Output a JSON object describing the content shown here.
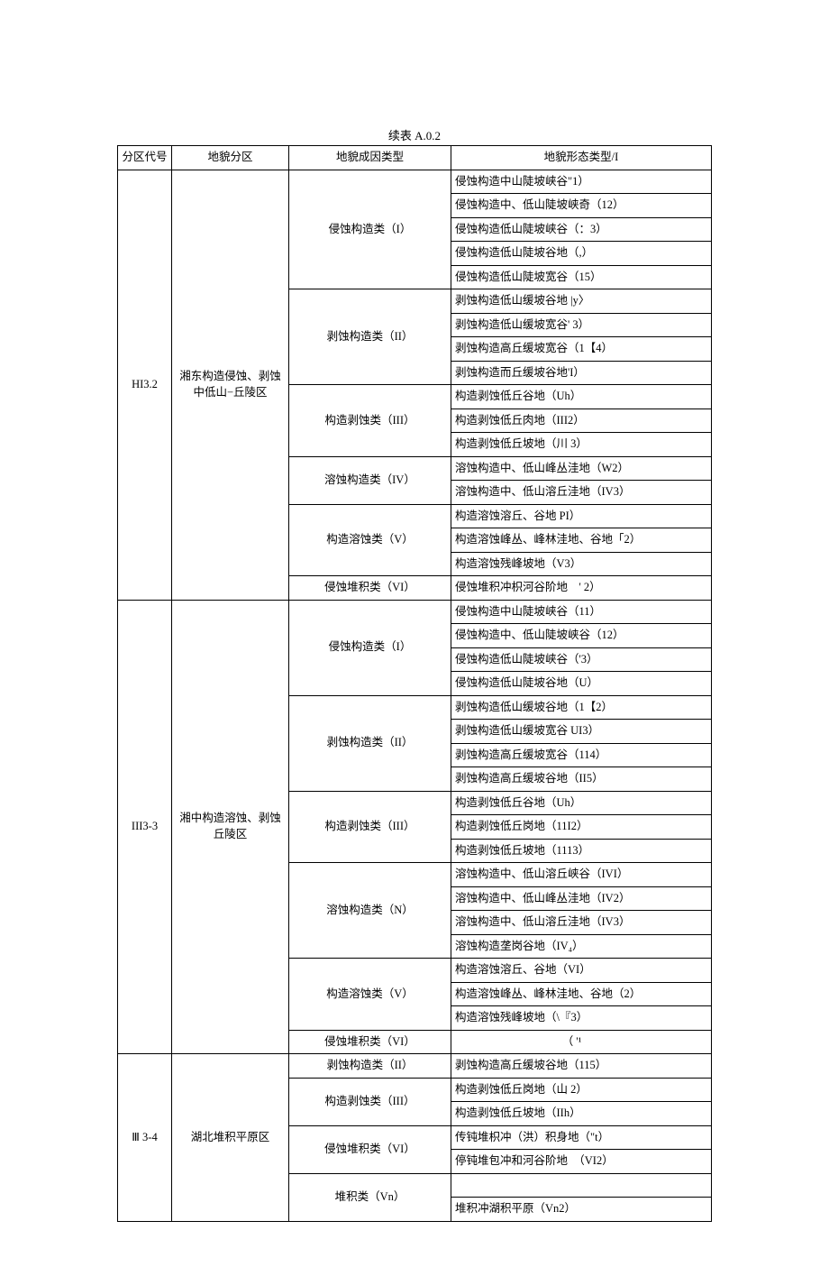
{
  "caption": "续表 A.0.2",
  "headers": {
    "code": "分区代号",
    "zone": "地貌分区",
    "genetic": "地貌成因类型",
    "morph": "地貌形态类型/I"
  },
  "sections": [
    {
      "code": "HI3.2",
      "zone": "湘东构造侵蚀、剥蚀中低山−丘陵区",
      "groups": [
        {
          "genetic": "侵蚀构造类（I）",
          "rows": [
            "侵蚀构造中山陡坡峡谷\"1）",
            "侵蚀构造中、低山陡坡峡奇（12）",
            "侵蚀构造低山陡坡峡谷（：3）",
            "侵蚀构造低山陡坡谷地（,）",
            "侵蚀构造低山陡坡宽谷（15）"
          ]
        },
        {
          "genetic": "剥蚀构造类（II）",
          "rows": [
            "剥蚀构造低山缓坡谷地 |y〉",
            "剥蚀构造低山缓坡宽谷' 3）",
            "剥蚀构造高丘缓坡宽谷（1【4）",
            "剥蚀构造而丘缓坡谷地'I）"
          ]
        },
        {
          "genetic": "构造剥蚀类（III）",
          "rows": [
            "构造剥蚀低丘谷地（Uh）",
            "构造剥蚀低丘肉地（III2）",
            "构造剥蚀低丘坡地（川 3）"
          ]
        },
        {
          "genetic": "溶蚀构造类（IV）",
          "rows": [
            "溶蚀构造中、低山峰丛洼地（W2）",
            "溶蚀构造中、低山溶丘洼地（IV3）"
          ]
        },
        {
          "genetic": "构造溶蚀类（V）",
          "rows": [
            "构造溶蚀溶丘、谷地 PI）",
            "构造溶蚀峰丛、峰林洼地、谷地「2）",
            "构造溶蚀残峰坡地（V3）"
          ]
        },
        {
          "genetic": "侵蚀堆积类（VI）",
          "rows": [
            "侵蚀堆积冲枳河谷阶地　' 2）"
          ]
        }
      ]
    },
    {
      "code": "III3-3",
      "zone": "湘中构造溶蚀、剥蚀丘陵区",
      "groups": [
        {
          "genetic": "侵蚀构造类（I）",
          "rows": [
            "侵蚀构造中山陡坡峡谷（11）",
            "侵蚀构造中、低山陡坡峡谷（12）",
            "侵蚀构造低山陡坡峡谷（'3）",
            "侵蚀构造低山陡坡谷地（U）"
          ]
        },
        {
          "genetic": "剥蚀构造类（II）",
          "rows": [
            "剥蚀构造低山缓坡谷地（1【2）",
            "剥蚀构造低山缓坡宽谷 UI3）",
            "剥蚀构造高丘缓坡宽谷（114）",
            "剥蚀构造高丘缓坡谷地（II5）"
          ]
        },
        {
          "genetic": "构造剥蚀类（III）",
          "rows": [
            "构造剥蚀低丘谷地（Uh）",
            "构造剥蚀低丘岗地（11I2）",
            "构造剥蚀低丘坡地（1113）"
          ]
        },
        {
          "genetic": "溶蚀构造类（N）",
          "rows": [
            "溶蚀构造中、低山溶丘峡谷（IVI）",
            "溶蚀构造中、低山峰丛洼地（IV2）",
            "溶蚀构造中、低山溶丘洼地（IV3）",
            "溶蚀构造垄岗谷地（IV₄）"
          ]
        },
        {
          "genetic": "构造溶蚀类（V）",
          "rows": [
            "构造溶蚀溶丘、谷地（VI）",
            "构造溶蚀峰丛、峰林洼地、谷地（2）",
            "构造溶蚀残峰坡地（\\『3）"
          ]
        },
        {
          "genetic": "侵蚀堆积类（VI）",
          "rows": [
            "　　　　　　　　　　（ '¹"
          ]
        }
      ]
    },
    {
      "code": "Ⅲ 3-4",
      "zone": "湖北堆积平原区",
      "groups": [
        {
          "genetic": "剥蚀构造类（II）",
          "rows": [
            "剥蚀构造高丘缓坡谷地（115）"
          ]
        },
        {
          "genetic": "构造剥蚀类（III）",
          "rows": [
            "构造剥蚀低丘岗地（山 2）",
            "构造剥蚀低丘坡地（IIh）"
          ]
        },
        {
          "genetic": "侵蚀堆积类（VI）",
          "rows": [
            "传钝堆枳冲（洪）积身地（\"t）",
            "停钝堆包冲和河谷阶地　（VI2）"
          ]
        },
        {
          "genetic": "堆积类（Vn）",
          "rows": [
            "　",
            "堆积冲湖积平原（Vn2）"
          ]
        }
      ]
    }
  ]
}
